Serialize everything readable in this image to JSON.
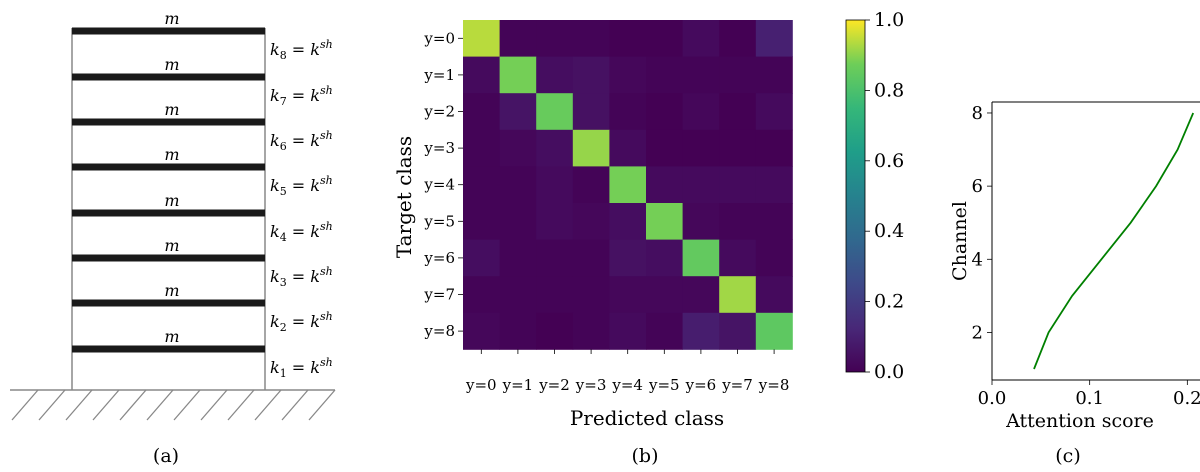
{
  "panel_a": {
    "caption": "(a)",
    "mass_label": "m",
    "stories": [
      "k_8",
      "k_7",
      "k_6",
      "k_5",
      "k_4",
      "k_3",
      "k_2",
      "k_1"
    ],
    "stiffness_rhs": "k^{sh}"
  },
  "chart_data": [
    {
      "type": "heatmap",
      "caption": "(b)",
      "xlabel": "Predicted class",
      "ylabel": "Target class",
      "categories_x": [
        "y=0",
        "y=1",
        "y=2",
        "y=3",
        "y=4",
        "y=5",
        "y=6",
        "y=7",
        "y=8"
      ],
      "categories_y": [
        "y=0",
        "y=1",
        "y=2",
        "y=3",
        "y=4",
        "y=5",
        "y=6",
        "y=7",
        "y=8"
      ],
      "values": [
        [
          0.94,
          0.01,
          0.01,
          0.01,
          0.0,
          0.0,
          0.03,
          0.0,
          0.1
        ],
        [
          0.03,
          0.88,
          0.04,
          0.05,
          0.02,
          0.01,
          0.01,
          0.01,
          0.01
        ],
        [
          0.01,
          0.06,
          0.86,
          0.05,
          0.01,
          0.0,
          0.02,
          0.0,
          0.03
        ],
        [
          0.01,
          0.02,
          0.04,
          0.91,
          0.03,
          0.0,
          0.0,
          0.0,
          0.0
        ],
        [
          0.01,
          0.01,
          0.03,
          0.01,
          0.88,
          0.03,
          0.03,
          0.03,
          0.03
        ],
        [
          0.01,
          0.01,
          0.03,
          0.02,
          0.04,
          0.88,
          0.02,
          0.01,
          0.01
        ],
        [
          0.04,
          0.01,
          0.01,
          0.01,
          0.05,
          0.04,
          0.85,
          0.03,
          0.01
        ],
        [
          0.01,
          0.01,
          0.01,
          0.01,
          0.02,
          0.02,
          0.02,
          0.92,
          0.03
        ],
        [
          0.02,
          0.01,
          0.0,
          0.01,
          0.03,
          0.01,
          0.09,
          0.06,
          0.84
        ]
      ],
      "colorbar": {
        "ticks": [
          "0.0",
          "0.2",
          "0.4",
          "0.6",
          "0.8",
          "1.0"
        ],
        "range": [
          0,
          1
        ],
        "colormap": "viridis"
      }
    },
    {
      "type": "line",
      "caption": "(c)",
      "xlabel": "Attention score",
      "ylabel": "Channel",
      "x": [
        0.043,
        0.058,
        0.082,
        0.112,
        0.142,
        0.168,
        0.19,
        0.206
      ],
      "y": [
        1,
        2,
        3,
        4,
        5,
        6,
        7,
        8
      ],
      "color": "#008000",
      "xlim": [
        0.0,
        0.3
      ],
      "ylim": [
        0.7,
        8.3
      ],
      "xticks": [
        "0.0",
        "0.1",
        "0.2"
      ],
      "yticks": [
        "2",
        "4",
        "6",
        "8"
      ]
    }
  ]
}
